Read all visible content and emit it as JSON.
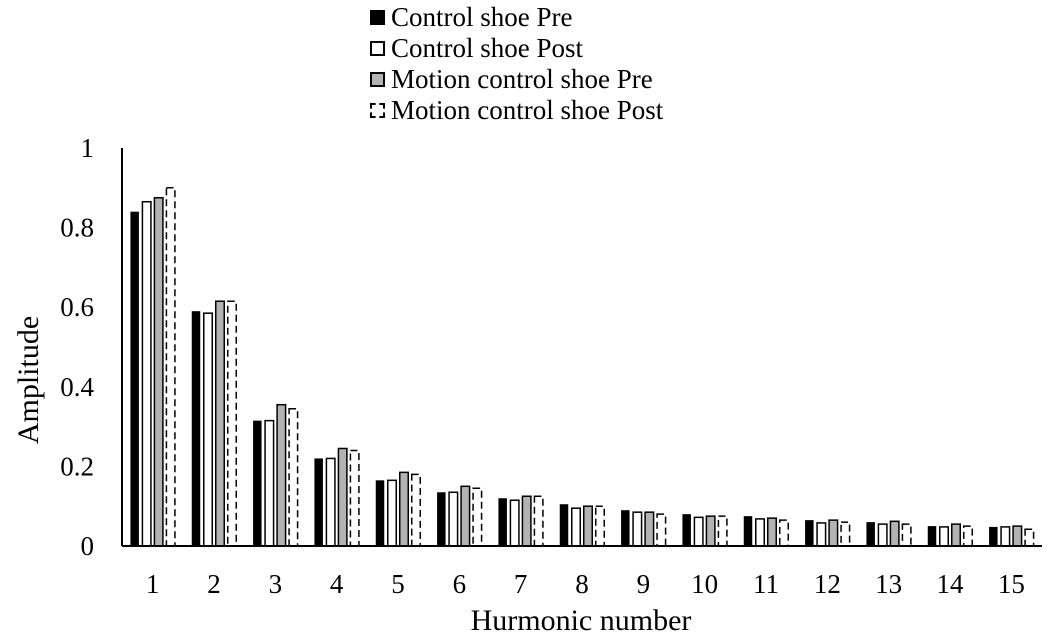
{
  "chart_data": {
    "type": "bar",
    "title": "",
    "xlabel": "Hurmonic number",
    "ylabel": "Amplitude",
    "ylim": [
      0,
      1
    ],
    "yticks": [
      "0",
      "0.2",
      "0.4",
      "0.6",
      "0.8",
      "1"
    ],
    "grid": false,
    "legend_position": "top-center",
    "categories": [
      "1",
      "2",
      "3",
      "4",
      "5",
      "6",
      "7",
      "8",
      "9",
      "10",
      "11",
      "12",
      "13",
      "14",
      "15"
    ],
    "series": [
      {
        "name": "Control shoe Pre",
        "color": "#000000",
        "style": "solid-black",
        "values": [
          0.84,
          0.59,
          0.315,
          0.22,
          0.165,
          0.135,
          0.12,
          0.105,
          0.09,
          0.08,
          0.075,
          0.065,
          0.06,
          0.05,
          0.048
        ]
      },
      {
        "name": "Control shoe Post",
        "color": "#ffffff",
        "style": "outline",
        "values": [
          0.865,
          0.585,
          0.315,
          0.22,
          0.165,
          0.135,
          0.115,
          0.095,
          0.085,
          0.072,
          0.068,
          0.058,
          0.055,
          0.048,
          0.048
        ]
      },
      {
        "name": "Motion control shoe Pre",
        "color": "#b3b3b3",
        "style": "gray",
        "values": [
          0.875,
          0.615,
          0.355,
          0.245,
          0.185,
          0.15,
          0.125,
          0.1,
          0.085,
          0.075,
          0.07,
          0.065,
          0.062,
          0.055,
          0.05
        ]
      },
      {
        "name": "Motion control shoe Post",
        "color": "#ffffff",
        "style": "dashed",
        "values": [
          0.9,
          0.615,
          0.345,
          0.24,
          0.18,
          0.145,
          0.125,
          0.1,
          0.08,
          0.075,
          0.065,
          0.06,
          0.055,
          0.05,
          0.042
        ]
      }
    ]
  }
}
